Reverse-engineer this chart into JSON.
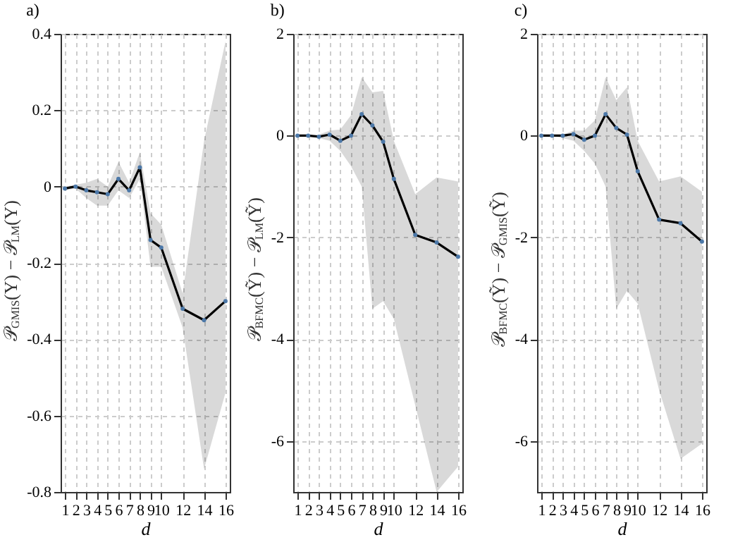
{
  "chart_data": [
    {
      "type": "line",
      "title": "a)",
      "xlabel": "d",
      "ylabel": "𝒫$_{GMIS}$(Y) − 𝒫$_{LM}$(Y)",
      "x": [
        1,
        2,
        3,
        4,
        5,
        6,
        7,
        8,
        9,
        10,
        12,
        14,
        16
      ],
      "xlim": [
        0.6,
        16.4
      ],
      "xticks": [
        1,
        2,
        3,
        4,
        5,
        6,
        7,
        8,
        9,
        10,
        12,
        14,
        16
      ],
      "ylim": [
        -0.8,
        0.4
      ],
      "yticks": [
        -0.8,
        -0.6,
        -0.4,
        -0.2,
        0,
        0.2,
        0.4
      ],
      "grid": true,
      "marker": "circle",
      "line_style": "solid",
      "series": [
        {
          "color": "#000000",
          "values": [
            -0.005,
            0.0,
            -0.01,
            -0.015,
            -0.02,
            0.02,
            -0.01,
            0.05,
            -0.14,
            -0.16,
            -0.32,
            -0.35,
            -0.3
          ],
          "lower": [
            -0.01,
            -0.005,
            -0.03,
            -0.05,
            -0.05,
            -0.01,
            -0.03,
            0.02,
            -0.21,
            -0.21,
            -0.37,
            -0.74,
            -0.54
          ],
          "upper": [
            0.0,
            0.005,
            0.01,
            0.02,
            0.0,
            0.065,
            0.01,
            0.09,
            -0.07,
            -0.1,
            -0.28,
            0.12,
            0.38
          ]
        }
      ]
    },
    {
      "type": "line",
      "title": "b)",
      "xlabel": "d",
      "ylabel": "𝒫$_{BFMC}$(Ỹ) − 𝒫$_{LM}$(Ỹ)",
      "x": [
        1,
        2,
        3,
        4,
        5,
        6,
        7,
        8,
        9,
        10,
        12,
        14,
        16
      ],
      "xlim": [
        0.6,
        16.4
      ],
      "xticks": [
        1,
        2,
        3,
        4,
        5,
        6,
        7,
        8,
        9,
        10,
        12,
        14,
        16
      ],
      "ylim": [
        -7,
        2
      ],
      "yticks": [
        -6,
        -4,
        -2,
        0,
        2
      ],
      "grid": true,
      "marker": "circle",
      "line_style": "solid",
      "series": [
        {
          "color": "#000000",
          "values": [
            0,
            0,
            -0.02,
            0.02,
            -0.1,
            0.0,
            0.42,
            0.2,
            -0.12,
            -0.85,
            -1.95,
            -2.1,
            -2.38
          ],
          "lower": [
            0,
            0,
            -0.05,
            -0.1,
            -0.3,
            -0.6,
            -1.0,
            -3.4,
            -3.25,
            -3.6,
            -5.3,
            -7.0,
            -6.5
          ],
          "upper": [
            0,
            0,
            0.02,
            0.1,
            0.12,
            0.4,
            1.15,
            0.85,
            0.88,
            -0.1,
            -1.15,
            -0.82,
            -0.9
          ]
        }
      ]
    },
    {
      "type": "line",
      "title": "c)",
      "xlabel": "d",
      "ylabel": "𝒫$_{BFMC}$(Ỹ) − 𝒫$_{GMIS}$(Ỹ)",
      "x": [
        1,
        2,
        3,
        4,
        5,
        6,
        7,
        8,
        9,
        10,
        12,
        14,
        16
      ],
      "xlim": [
        0.6,
        16.4
      ],
      "xticks": [
        1,
        2,
        3,
        4,
        5,
        6,
        7,
        8,
        9,
        10,
        12,
        14,
        16
      ],
      "ylim": [
        -7,
        2
      ],
      "yticks": [
        -6,
        -4,
        -2,
        0,
        2
      ],
      "grid": true,
      "marker": "circle",
      "line_style": "solid",
      "series": [
        {
          "color": "#000000",
          "values": [
            0,
            0,
            0,
            0.03,
            -0.08,
            0,
            0.42,
            0.15,
            0.02,
            -0.7,
            -1.65,
            -1.72,
            -2.08
          ],
          "lower": [
            0,
            0,
            -0.05,
            -0.1,
            -0.3,
            -0.55,
            -1.0,
            -3.4,
            -3.05,
            -3.3,
            -5.0,
            -6.35,
            -6.05
          ],
          "upper": [
            0,
            0,
            0.02,
            0.1,
            0.1,
            0.3,
            1.15,
            0.7,
            0.95,
            -0.1,
            -0.9,
            -0.8,
            -1.1
          ]
        }
      ]
    }
  ]
}
